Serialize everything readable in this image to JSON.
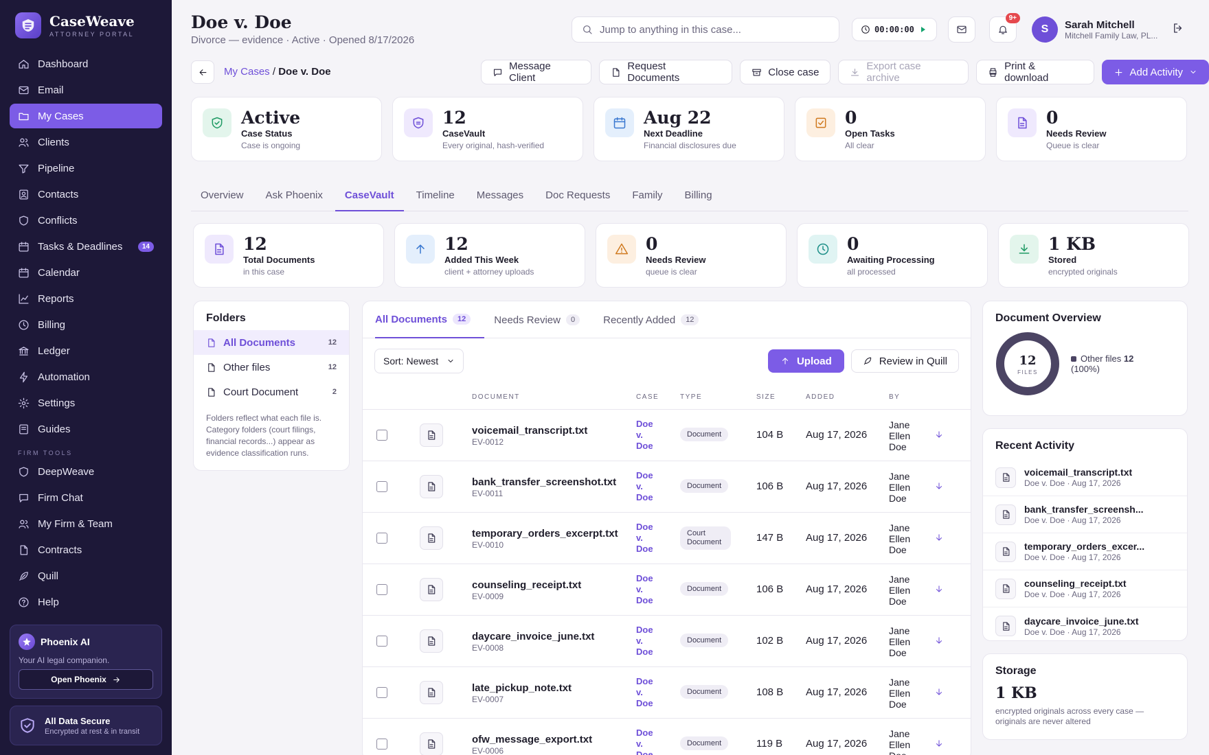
{
  "brand": {
    "name": "CaseWeave",
    "subtitle": "ATTORNEY PORTAL"
  },
  "sidebar": {
    "items": [
      {
        "label": "Dashboard",
        "icon": "home-icon"
      },
      {
        "label": "Email",
        "icon": "mail-icon"
      },
      {
        "label": "My Cases",
        "icon": "folder-icon",
        "active": true
      },
      {
        "label": "Clients",
        "icon": "users-icon"
      },
      {
        "label": "Pipeline",
        "icon": "funnel-icon"
      },
      {
        "label": "Contacts",
        "icon": "contact-icon"
      },
      {
        "label": "Conflicts",
        "icon": "shield-icon"
      },
      {
        "label": "Tasks & Deadlines",
        "icon": "calendar-check-icon",
        "badge": "14"
      },
      {
        "label": "Calendar",
        "icon": "calendar-icon"
      },
      {
        "label": "Reports",
        "icon": "chart-icon"
      },
      {
        "label": "Billing",
        "icon": "clock-icon"
      },
      {
        "label": "Ledger",
        "icon": "bank-icon"
      },
      {
        "label": "Automation",
        "icon": "bolt-icon"
      },
      {
        "label": "Settings",
        "icon": "gear-icon"
      },
      {
        "label": "Guides",
        "icon": "book-icon"
      }
    ],
    "section_label": "FIRM TOOLS",
    "tools": [
      {
        "label": "DeepWeave",
        "icon": "shield-icon"
      },
      {
        "label": "Firm Chat",
        "icon": "chat-icon"
      },
      {
        "label": "My Firm & Team",
        "icon": "users-icon"
      },
      {
        "label": "Contracts",
        "icon": "file-icon"
      },
      {
        "label": "Quill",
        "icon": "feather-icon"
      },
      {
        "label": "Help",
        "icon": "help-icon"
      }
    ],
    "phoenix": {
      "title": "Phoenix AI",
      "subtitle": "Your AI legal companion.",
      "button": "Open Phoenix"
    },
    "secure": {
      "title": "All Data Secure",
      "subtitle": "Encrypted at rest & in transit"
    }
  },
  "header": {
    "title": "Doe v. Doe",
    "subtitle": "Divorce — evidence · Active · Opened 8/17/2026",
    "search_placeholder": "Jump to anything in this case...",
    "timer": "00:00:00",
    "notif_badge": "9+",
    "user": {
      "initial": "S",
      "name": "Sarah Mitchell",
      "firm": "Mitchell Family Law, PL..."
    }
  },
  "breadcrumb": {
    "parent": "My Cases",
    "sep": "/",
    "current": "Doe v. Doe"
  },
  "actions": [
    {
      "label": "Message Client",
      "icon": "chat-icon"
    },
    {
      "label": "Request Documents",
      "icon": "file-icon"
    },
    {
      "label": "Close case",
      "icon": "archive-icon"
    },
    {
      "label": "Export case archive",
      "icon": "download-icon",
      "disabled": true
    },
    {
      "label": "Print & download",
      "icon": "printer-icon"
    },
    {
      "label": "Add Activity",
      "icon": "plus-icon",
      "primary": true
    }
  ],
  "case_stats": [
    {
      "value": "Active",
      "label": "Case Status",
      "sub": "Case is ongoing",
      "icon": "shield-check-icon",
      "color": "#e3f5ec",
      "fg": "#1f9a64"
    },
    {
      "value": "12",
      "label": "CaseVault",
      "sub": "Every original, hash-verified",
      "icon": "shield-icon",
      "color": "#efe9fd",
      "fg": "#6e4fd8"
    },
    {
      "value": "Aug 22",
      "label": "Next Deadline",
      "sub": "Financial disclosures due",
      "icon": "calendar-icon",
      "color": "#e4effc",
      "fg": "#3a78d0"
    },
    {
      "value": "0",
      "label": "Open Tasks",
      "sub": "All clear",
      "icon": "check-square-icon",
      "color": "#fdefe0",
      "fg": "#d07a1f"
    },
    {
      "value": "0",
      "label": "Needs Review",
      "sub": "Queue is clear",
      "icon": "file-icon",
      "color": "#efe9fd",
      "fg": "#6e4fd8"
    }
  ],
  "tabs": [
    "Overview",
    "Ask Phoenix",
    "CaseVault",
    "Timeline",
    "Messages",
    "Doc Requests",
    "Family",
    "Billing"
  ],
  "active_tab": 2,
  "vault_stats": [
    {
      "value": "12",
      "label": "Total Documents",
      "sub": "in this case",
      "icon": "file-icon",
      "color": "#efe9fd",
      "fg": "#6e4fd8"
    },
    {
      "value": "12",
      "label": "Added This Week",
      "sub": "client + attorney uploads",
      "icon": "arrow-up-icon",
      "color": "#e4effc",
      "fg": "#3a78d0"
    },
    {
      "value": "0",
      "label": "Needs Review",
      "sub": "queue is clear",
      "icon": "warning-icon",
      "color": "#fdefe0",
      "fg": "#d07a1f"
    },
    {
      "value": "0",
      "label": "Awaiting Processing",
      "sub": "all processed",
      "icon": "clock-icon",
      "color": "#e0f4f3",
      "fg": "#1d8f88"
    },
    {
      "value": "1 KB",
      "label": "Stored",
      "sub": "encrypted originals",
      "icon": "download-icon",
      "color": "#e3f5ec",
      "fg": "#1f9a64"
    }
  ],
  "folders": {
    "title": "Folders",
    "items": [
      {
        "label": "All Documents",
        "count": "12",
        "active": true
      },
      {
        "label": "Other files",
        "count": "12"
      },
      {
        "label": "Court Document",
        "count": "2"
      }
    ],
    "note": "Folders reflect what each file is. Category folders (court filings, financial records...) appear as evidence classification runs."
  },
  "documents": {
    "tabs": [
      {
        "label": "All Documents",
        "count": "12",
        "active": true
      },
      {
        "label": "Needs Review",
        "count": "0"
      },
      {
        "label": "Recently Added",
        "count": "12"
      }
    ],
    "sort": "Sort: Newest",
    "upload": "Upload",
    "quill": "Review in Quill",
    "columns": {
      "document": "DOCUMENT",
      "case": "CASE",
      "type": "TYPE",
      "size": "SIZE",
      "added": "ADDED",
      "by": "BY"
    },
    "rows": [
      {
        "name": "voicemail_transcript.txt",
        "id": "EV-0012",
        "case": "Doe v. Doe",
        "type": "Document",
        "size": "104 B",
        "added": "Aug 17, 2026",
        "by": "Jane Ellen Doe"
      },
      {
        "name": "bank_transfer_screenshot.txt",
        "id": "EV-0011",
        "case": "Doe v. Doe",
        "type": "Document",
        "size": "106 B",
        "added": "Aug 17, 2026",
        "by": "Jane Ellen Doe"
      },
      {
        "name": "temporary_orders_excerpt.txt",
        "id": "EV-0010",
        "case": "Doe v. Doe",
        "type": "Court Document",
        "size": "147 B",
        "added": "Aug 17, 2026",
        "by": "Jane Ellen Doe"
      },
      {
        "name": "counseling_receipt.txt",
        "id": "EV-0009",
        "case": "Doe v. Doe",
        "type": "Document",
        "size": "106 B",
        "added": "Aug 17, 2026",
        "by": "Jane Ellen Doe"
      },
      {
        "name": "daycare_invoice_june.txt",
        "id": "EV-0008",
        "case": "Doe v. Doe",
        "type": "Document",
        "size": "102 B",
        "added": "Aug 17, 2026",
        "by": "Jane Ellen Doe"
      },
      {
        "name": "late_pickup_note.txt",
        "id": "EV-0007",
        "case": "Doe v. Doe",
        "type": "Document",
        "size": "108 B",
        "added": "Aug 17, 2026",
        "by": "Jane Ellen Doe"
      },
      {
        "name": "ofw_message_export.txt",
        "id": "EV-0006",
        "case": "Doe v. Doe",
        "type": "Document",
        "size": "119 B",
        "added": "Aug 17, 2026",
        "by": "Jane Ellen Doe"
      }
    ]
  },
  "overview": {
    "title": "Document Overview",
    "total": "12",
    "total_label": "FILES",
    "legend": [
      {
        "name": "Other files",
        "count": "12",
        "pct": "(100%)",
        "fraction": 1.0
      }
    ]
  },
  "recent": {
    "title": "Recent Activity",
    "items": [
      {
        "name": "voicemail_transcript.txt",
        "meta": "Doe v. Doe · Aug 17, 2026"
      },
      {
        "name": "bank_transfer_screensh...",
        "meta": "Doe v. Doe · Aug 17, 2026"
      },
      {
        "name": "temporary_orders_excer...",
        "meta": "Doe v. Doe · Aug 17, 2026"
      },
      {
        "name": "counseling_receipt.txt",
        "meta": "Doe v. Doe · Aug 17, 2026"
      },
      {
        "name": "daycare_invoice_june.txt",
        "meta": "Doe v. Doe · Aug 17, 2026"
      }
    ]
  },
  "storage": {
    "title": "Storage",
    "value": "1 KB",
    "sub": "encrypted originals across every case — originals are never altered"
  }
}
